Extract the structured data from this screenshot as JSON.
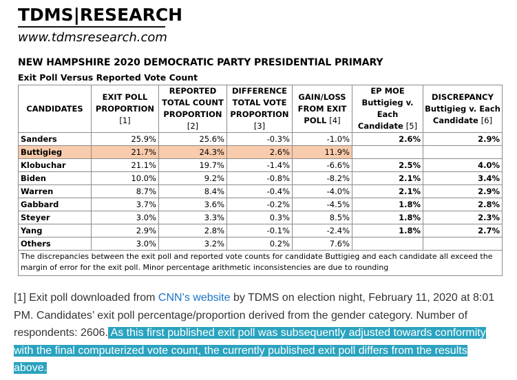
{
  "header": {
    "brand": "TDMS|RESEARCH",
    "website": "www.tdmsresearch.com",
    "title": "NEW HAMPSHIRE 2020 DEMOCRATIC PARTY PRESIDENTIAL PRIMARY",
    "subtitle": "Exit Poll Versus Reported Vote Count"
  },
  "table": {
    "columns": [
      {
        "label": "CANDIDATES"
      },
      {
        "label": "EXIT POLL PROPORTION",
        "ref": "[1]"
      },
      {
        "label": "REPORTED TOTAL COUNT PROPORTION",
        "ref": "[2]"
      },
      {
        "label": "DIFFERENCE TOTAL VOTE PROPORTION",
        "ref": "[3]"
      },
      {
        "label": "GAIN/LOSS FROM EXIT POLL",
        "ref": "[4]"
      },
      {
        "label": "EP MOE Buttigieg v. Each Candidate",
        "ref": "[5]"
      },
      {
        "label": "DISCREPANCY Buttigieg v. Each Candidate",
        "ref": "[6]"
      }
    ],
    "rows": [
      {
        "name": "Sanders",
        "exit": "25.9%",
        "reported": "25.6%",
        "diff": "-0.3%",
        "gain": "-1.0%",
        "moe": "2.6%",
        "disc": "2.9%"
      },
      {
        "name": "Buttigieg",
        "exit": "21.7%",
        "reported": "24.3%",
        "diff": "2.6%",
        "gain": "11.9%",
        "moe": "",
        "disc": "",
        "highlight": true
      },
      {
        "name": "Klobuchar",
        "exit": "21.1%",
        "reported": "19.7%",
        "diff": "-1.4%",
        "gain": "-6.6%",
        "moe": "2.5%",
        "disc": "4.0%"
      },
      {
        "name": "Biden",
        "exit": "10.0%",
        "reported": "9.2%",
        "diff": "-0.8%",
        "gain": "-8.2%",
        "moe": "2.1%",
        "disc": "3.4%"
      },
      {
        "name": "Warren",
        "exit": "8.7%",
        "reported": "8.4%",
        "diff": "-0.4%",
        "gain": "-4.0%",
        "moe": "2.1%",
        "disc": "2.9%"
      },
      {
        "name": "Gabbard",
        "exit": "3.7%",
        "reported": "3.6%",
        "diff": "-0.2%",
        "gain": "-4.5%",
        "moe": "1.8%",
        "disc": "2.8%"
      },
      {
        "name": "Steyer",
        "exit": "3.0%",
        "reported": "3.3%",
        "diff": "0.3%",
        "gain": "8.5%",
        "moe": "1.8%",
        "disc": "2.3%"
      },
      {
        "name": "Yang",
        "exit": "2.9%",
        "reported": "2.8%",
        "diff": "-0.1%",
        "gain": "-2.4%",
        "moe": "1.8%",
        "disc": "2.7%"
      },
      {
        "name": "Others",
        "exit": "3.0%",
        "reported": "3.2%",
        "diff": "0.2%",
        "gain": "7.6%",
        "moe": "",
        "disc": ""
      }
    ],
    "note": "The discrepancies between the exit poll and reported vote counts for candidate Buttigieg and each candidate all exceed the margin of error for the exit poll.  Minor percentage arithmetic inconsistencies are due to rounding"
  },
  "footnote": {
    "text_before_link": "[1] Exit poll downloaded from ",
    "link_text": "CNN’s website",
    "text_after_link": " by TDMS on election night, February 11, 2020 at 8:01 PM. Candidates’ exit poll percentage/proportion derived from the gender category. Number of respondents: 2606.",
    "selected_text": " As this first published exit poll was subsequently adjusted towards conformity with the final computerized vote count, the currently published exit poll differs from the results above."
  },
  "colors": {
    "highlight_row": "#f9cbad",
    "link": "#1a73c8",
    "selection": "#2aa3bf"
  }
}
